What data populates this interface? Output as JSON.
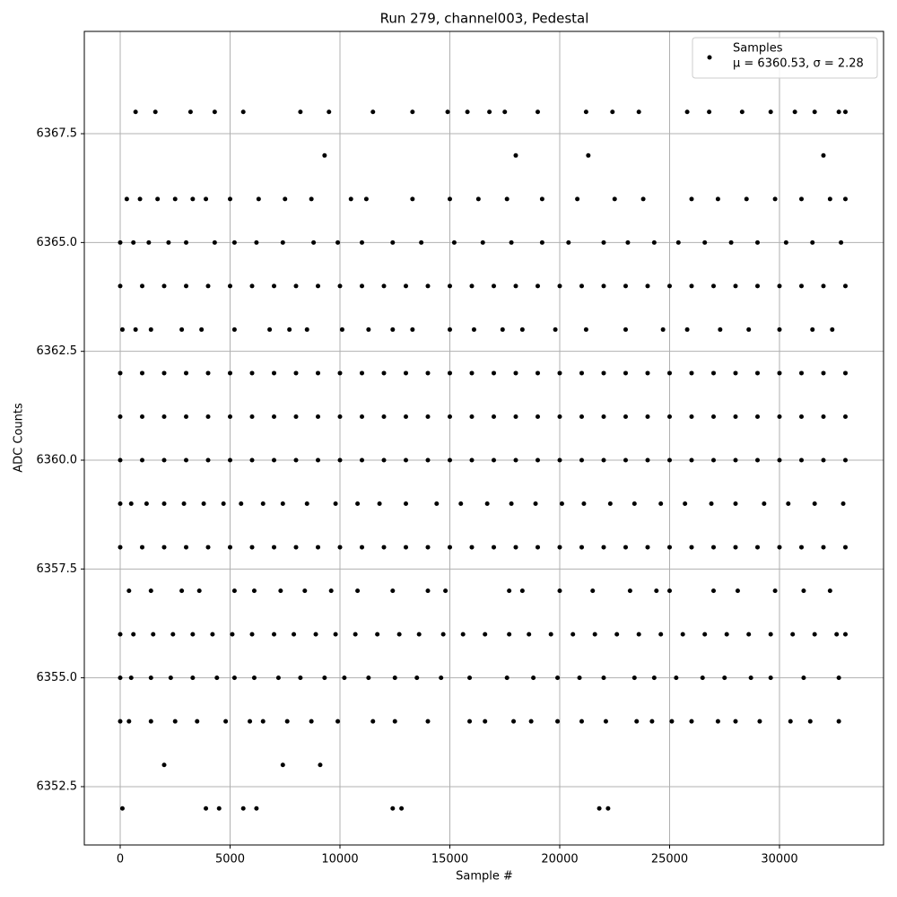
{
  "chart_data": {
    "type": "scatter",
    "title": "Run 279, channel003, Pedestal",
    "xlabel": "Sample #",
    "ylabel": "ADC Counts",
    "xlim": [
      -1633,
      34735
    ],
    "ylim": [
      6351.16,
      6369.85
    ],
    "xticks": [
      0,
      5000,
      10000,
      15000,
      20000,
      25000,
      30000
    ],
    "yticks": [
      6352.5,
      {
        "value": 6355,
        "label": "6355.0"
      },
      6357.5,
      {
        "value": 6360,
        "label": "6360.0"
      },
      6362.5,
      {
        "value": 6365,
        "label": "6365.0"
      },
      6367.5
    ],
    "grid": true,
    "legend": "upper right",
    "legend_note": "μ = 6360.53, σ = 2.28",
    "series": [
      {
        "name": "Samples",
        "color": "#000000",
        "x": [
          0,
          1000,
          2000,
          3000,
          4000,
          5000,
          6000,
          7000,
          8000,
          9000,
          10000,
          11000,
          12000,
          13000,
          14000,
          15000,
          16000,
          17000,
          18000,
          19000,
          20000,
          21000,
          22000,
          23000,
          24000,
          25000,
          26000,
          27000,
          28000,
          29000,
          30000,
          31000,
          32000,
          33000,
          0,
          1000,
          2000,
          3000,
          4000,
          5000,
          6000,
          7000,
          8000,
          9000,
          10000,
          11000,
          12000,
          13000,
          14000,
          15000,
          16000,
          17000,
          18000,
          19000,
          20000,
          21000,
          22000,
          23000,
          24000,
          25000,
          26000,
          27000,
          28000,
          29000,
          30000,
          31000,
          32000,
          33000,
          0,
          1000,
          2000,
          3000,
          4000,
          5000,
          6000,
          7000,
          8000,
          9000,
          10000,
          11000,
          12000,
          13000,
          14000,
          15000,
          16000,
          17000,
          18000,
          19000,
          20000,
          21000,
          22000,
          23000,
          24000,
          25000,
          26000,
          27000,
          28000,
          29000,
          30000,
          31000,
          32000,
          33000,
          0,
          1000,
          2000,
          3000,
          4000,
          5000,
          6000,
          7000,
          8000,
          9000,
          10000,
          11000,
          12000,
          13000,
          14000,
          15000,
          16000,
          17000,
          18000,
          19000,
          20000,
          21000,
          22000,
          23000,
          24000,
          25000,
          26000,
          27000,
          28000,
          29000,
          30000,
          31000,
          32000,
          33000,
          0,
          1000,
          2000,
          3000,
          4000,
          5000,
          6000,
          7000,
          8000,
          9000,
          10000,
          11000,
          12000,
          13000,
          14000,
          15000,
          16000,
          17000,
          18000,
          19000,
          20000,
          21000,
          22000,
          23000,
          24000,
          25000,
          26000,
          27000,
          28000,
          29000,
          30000,
          31000,
          32000,
          33000,
          700,
          1600,
          3200,
          4300,
          5600,
          8200,
          9500,
          11500,
          13300,
          14900,
          15800,
          16800,
          17500,
          19000,
          21200,
          22400,
          23600,
          25800,
          26800,
          28300,
          29600,
          30700,
          31600,
          32700,
          33000,
          9300,
          18000,
          21300,
          32000,
          300,
          900,
          1700,
          2500,
          3300,
          3900,
          5000,
          6300,
          7500,
          8700,
          10500,
          11200,
          13300,
          15000,
          16300,
          17600,
          19200,
          20800,
          22500,
          23800,
          26000,
          27200,
          28500,
          29800,
          31000,
          32300,
          33000,
          0,
          600,
          1300,
          2200,
          3000,
          4300,
          5200,
          6200,
          7400,
          8800,
          9900,
          11000,
          12400,
          13700,
          15200,
          16500,
          17800,
          19200,
          20400,
          22000,
          23100,
          24300,
          25400,
          26600,
          27800,
          29000,
          30300,
          31500,
          32800,
          100,
          700,
          1400,
          2800,
          3700,
          5200,
          6800,
          7700,
          8500,
          10100,
          11300,
          12400,
          13300,
          15000,
          16100,
          17400,
          18300,
          19800,
          21200,
          23000,
          24700,
          25800,
          27300,
          28600,
          30000,
          31500,
          32400,
          0,
          500,
          1200,
          2000,
          2900,
          3800,
          4700,
          5500,
          6500,
          7400,
          8500,
          9800,
          10800,
          11800,
          13000,
          14400,
          15500,
          16700,
          17800,
          18900,
          20100,
          21100,
          22300,
          23400,
          24600,
          25700,
          26900,
          28000,
          29300,
          30400,
          31600,
          32900,
          400,
          1400,
          2800,
          3600,
          5200,
          6100,
          7300,
          8400,
          9600,
          10800,
          12400,
          14000,
          14800,
          17700,
          18300,
          20000,
          21500,
          23200,
          24400,
          25000,
          27000,
          28100,
          29800,
          31100,
          32300,
          0,
          600,
          1500,
          2400,
          3300,
          4200,
          5100,
          6000,
          7000,
          7900,
          8900,
          9800,
          10700,
          11700,
          12700,
          13600,
          14700,
          15600,
          16600,
          17700,
          18600,
          19600,
          20600,
          21600,
          22600,
          23600,
          24600,
          25600,
          26600,
          27600,
          28600,
          29600,
          30600,
          31600,
          32600,
          33000,
          0,
          500,
          1400,
          2300,
          3300,
          4400,
          5200,
          6100,
          7200,
          8200,
          9300,
          10200,
          11300,
          12500,
          13500,
          14600,
          15900,
          17600,
          18800,
          19900,
          20900,
          22000,
          23400,
          24300,
          25300,
          26500,
          27500,
          28700,
          29600,
          31100,
          32700,
          0,
          400,
          1400,
          2500,
          3500,
          4800,
          5900,
          6500,
          7600,
          8700,
          9900,
          11500,
          12500,
          14000,
          15900,
          16600,
          17900,
          18700,
          19900,
          21000,
          22100,
          23500,
          24200,
          25100,
          26000,
          27200,
          28000,
          29100,
          30500,
          31400,
          32700,
          2000,
          7400,
          9100,
          100,
          3900,
          4500,
          5600,
          6200,
          12400,
          12800,
          21800,
          22200
        ],
        "values": [
          6358,
          6358,
          6358,
          6358,
          6358,
          6358,
          6358,
          6358,
          6358,
          6358,
          6358,
          6358,
          6358,
          6358,
          6358,
          6358,
          6358,
          6358,
          6358,
          6358,
          6358,
          6358,
          6358,
          6358,
          6358,
          6358,
          6358,
          6358,
          6358,
          6358,
          6358,
          6358,
          6358,
          6358,
          6360,
          6360,
          6360,
          6360,
          6360,
          6360,
          6360,
          6360,
          6360,
          6360,
          6360,
          6360,
          6360,
          6360,
          6360,
          6360,
          6360,
          6360,
          6360,
          6360,
          6360,
          6360,
          6360,
          6360,
          6360,
          6360,
          6360,
          6360,
          6360,
          6360,
          6360,
          6360,
          6360,
          6360,
          6361,
          6361,
          6361,
          6361,
          6361,
          6361,
          6361,
          6361,
          6361,
          6361,
          6361,
          6361,
          6361,
          6361,
          6361,
          6361,
          6361,
          6361,
          6361,
          6361,
          6361,
          6361,
          6361,
          6361,
          6361,
          6361,
          6361,
          6361,
          6361,
          6361,
          6361,
          6361,
          6361,
          6361,
          6362,
          6362,
          6362,
          6362,
          6362,
          6362,
          6362,
          6362,
          6362,
          6362,
          6362,
          6362,
          6362,
          6362,
          6362,
          6362,
          6362,
          6362,
          6362,
          6362,
          6362,
          6362,
          6362,
          6362,
          6362,
          6362,
          6362,
          6362,
          6362,
          6362,
          6362,
          6362,
          6362,
          6362,
          6364,
          6364,
          6364,
          6364,
          6364,
          6364,
          6364,
          6364,
          6364,
          6364,
          6364,
          6364,
          6364,
          6364,
          6364,
          6364,
          6364,
          6364,
          6364,
          6364,
          6364,
          6364,
          6364,
          6364,
          6364,
          6364,
          6364,
          6364,
          6364,
          6364,
          6364,
          6364,
          6364,
          6364,
          6368,
          6368,
          6368,
          6368,
          6368,
          6368,
          6368,
          6368,
          6368,
          6368,
          6368,
          6368,
          6368,
          6368,
          6368,
          6368,
          6368,
          6368,
          6368,
          6368,
          6368,
          6368,
          6368,
          6368,
          6368,
          6367,
          6367,
          6367,
          6367,
          6366,
          6366,
          6366,
          6366,
          6366,
          6366,
          6366,
          6366,
          6366,
          6366,
          6366,
          6366,
          6366,
          6366,
          6366,
          6366,
          6366,
          6366,
          6366,
          6366,
          6366,
          6366,
          6366,
          6366,
          6366,
          6366,
          6366,
          6365,
          6365,
          6365,
          6365,
          6365,
          6365,
          6365,
          6365,
          6365,
          6365,
          6365,
          6365,
          6365,
          6365,
          6365,
          6365,
          6365,
          6365,
          6365,
          6365,
          6365,
          6365,
          6365,
          6365,
          6365,
          6365,
          6365,
          6365,
          6365,
          6363,
          6363,
          6363,
          6363,
          6363,
          6363,
          6363,
          6363,
          6363,
          6363,
          6363,
          6363,
          6363,
          6363,
          6363,
          6363,
          6363,
          6363,
          6363,
          6363,
          6363,
          6363,
          6363,
          6363,
          6363,
          6363,
          6363,
          6359,
          6359,
          6359,
          6359,
          6359,
          6359,
          6359,
          6359,
          6359,
          6359,
          6359,
          6359,
          6359,
          6359,
          6359,
          6359,
          6359,
          6359,
          6359,
          6359,
          6359,
          6359,
          6359,
          6359,
          6359,
          6359,
          6359,
          6359,
          6359,
          6359,
          6359,
          6359,
          6357,
          6357,
          6357,
          6357,
          6357,
          6357,
          6357,
          6357,
          6357,
          6357,
          6357,
          6357,
          6357,
          6357,
          6357,
          6357,
          6357,
          6357,
          6357,
          6357,
          6357,
          6357,
          6357,
          6357,
          6357,
          6356,
          6356,
          6356,
          6356,
          6356,
          6356,
          6356,
          6356,
          6356,
          6356,
          6356,
          6356,
          6356,
          6356,
          6356,
          6356,
          6356,
          6356,
          6356,
          6356,
          6356,
          6356,
          6356,
          6356,
          6356,
          6356,
          6356,
          6356,
          6356,
          6356,
          6356,
          6356,
          6356,
          6356,
          6356,
          6356,
          6355,
          6355,
          6355,
          6355,
          6355,
          6355,
          6355,
          6355,
          6355,
          6355,
          6355,
          6355,
          6355,
          6355,
          6355,
          6355,
          6355,
          6355,
          6355,
          6355,
          6355,
          6355,
          6355,
          6355,
          6355,
          6355,
          6355,
          6355,
          6355,
          6355,
          6355,
          6354,
          6354,
          6354,
          6354,
          6354,
          6354,
          6354,
          6354,
          6354,
          6354,
          6354,
          6354,
          6354,
          6354,
          6354,
          6354,
          6354,
          6354,
          6354,
          6354,
          6354,
          6354,
          6354,
          6354,
          6354,
          6354,
          6354,
          6354,
          6354,
          6354,
          6354,
          6353,
          6353,
          6353,
          6352,
          6352,
          6352,
          6352,
          6352,
          6352,
          6352,
          6352,
          6352
        ]
      }
    ]
  }
}
